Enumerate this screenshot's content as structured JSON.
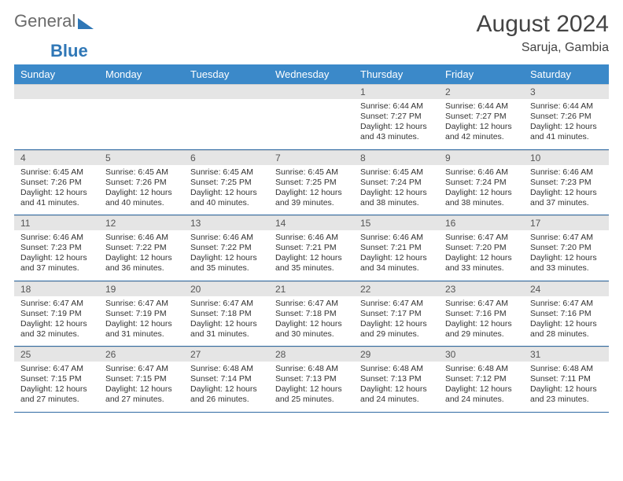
{
  "logo": {
    "text1": "General",
    "text2": "Blue"
  },
  "title": "August 2024",
  "subtitle": "Saruja, Gambia",
  "colors": {
    "header_bg": "#3b89c9",
    "header_fg": "#ffffff",
    "daynum_bg": "#e5e5e5",
    "week_border": "#2f6aa3",
    "logo_gray": "#6b6b6b",
    "logo_blue": "#2f77b6"
  },
  "weekdays": [
    "Sunday",
    "Monday",
    "Tuesday",
    "Wednesday",
    "Thursday",
    "Friday",
    "Saturday"
  ],
  "weeks": [
    {
      "nums": [
        "",
        "",
        "",
        "",
        "1",
        "2",
        "3"
      ],
      "cells": [
        null,
        null,
        null,
        null,
        {
          "sunrise": "6:44 AM",
          "sunset": "7:27 PM",
          "day": "12 hours and 43 minutes."
        },
        {
          "sunrise": "6:44 AM",
          "sunset": "7:27 PM",
          "day": "12 hours and 42 minutes."
        },
        {
          "sunrise": "6:44 AM",
          "sunset": "7:26 PM",
          "day": "12 hours and 41 minutes."
        }
      ]
    },
    {
      "nums": [
        "4",
        "5",
        "6",
        "7",
        "8",
        "9",
        "10"
      ],
      "cells": [
        {
          "sunrise": "6:45 AM",
          "sunset": "7:26 PM",
          "day": "12 hours and 41 minutes."
        },
        {
          "sunrise": "6:45 AM",
          "sunset": "7:26 PM",
          "day": "12 hours and 40 minutes."
        },
        {
          "sunrise": "6:45 AM",
          "sunset": "7:25 PM",
          "day": "12 hours and 40 minutes."
        },
        {
          "sunrise": "6:45 AM",
          "sunset": "7:25 PM",
          "day": "12 hours and 39 minutes."
        },
        {
          "sunrise": "6:45 AM",
          "sunset": "7:24 PM",
          "day": "12 hours and 38 minutes."
        },
        {
          "sunrise": "6:46 AM",
          "sunset": "7:24 PM",
          "day": "12 hours and 38 minutes."
        },
        {
          "sunrise": "6:46 AM",
          "sunset": "7:23 PM",
          "day": "12 hours and 37 minutes."
        }
      ]
    },
    {
      "nums": [
        "11",
        "12",
        "13",
        "14",
        "15",
        "16",
        "17"
      ],
      "cells": [
        {
          "sunrise": "6:46 AM",
          "sunset": "7:23 PM",
          "day": "12 hours and 37 minutes."
        },
        {
          "sunrise": "6:46 AM",
          "sunset": "7:22 PM",
          "day": "12 hours and 36 minutes."
        },
        {
          "sunrise": "6:46 AM",
          "sunset": "7:22 PM",
          "day": "12 hours and 35 minutes."
        },
        {
          "sunrise": "6:46 AM",
          "sunset": "7:21 PM",
          "day": "12 hours and 35 minutes."
        },
        {
          "sunrise": "6:46 AM",
          "sunset": "7:21 PM",
          "day": "12 hours and 34 minutes."
        },
        {
          "sunrise": "6:47 AM",
          "sunset": "7:20 PM",
          "day": "12 hours and 33 minutes."
        },
        {
          "sunrise": "6:47 AM",
          "sunset": "7:20 PM",
          "day": "12 hours and 33 minutes."
        }
      ]
    },
    {
      "nums": [
        "18",
        "19",
        "20",
        "21",
        "22",
        "23",
        "24"
      ],
      "cells": [
        {
          "sunrise": "6:47 AM",
          "sunset": "7:19 PM",
          "day": "12 hours and 32 minutes."
        },
        {
          "sunrise": "6:47 AM",
          "sunset": "7:19 PM",
          "day": "12 hours and 31 minutes."
        },
        {
          "sunrise": "6:47 AM",
          "sunset": "7:18 PM",
          "day": "12 hours and 31 minutes."
        },
        {
          "sunrise": "6:47 AM",
          "sunset": "7:18 PM",
          "day": "12 hours and 30 minutes."
        },
        {
          "sunrise": "6:47 AM",
          "sunset": "7:17 PM",
          "day": "12 hours and 29 minutes."
        },
        {
          "sunrise": "6:47 AM",
          "sunset": "7:16 PM",
          "day": "12 hours and 29 minutes."
        },
        {
          "sunrise": "6:47 AM",
          "sunset": "7:16 PM",
          "day": "12 hours and 28 minutes."
        }
      ]
    },
    {
      "nums": [
        "25",
        "26",
        "27",
        "28",
        "29",
        "30",
        "31"
      ],
      "cells": [
        {
          "sunrise": "6:47 AM",
          "sunset": "7:15 PM",
          "day": "12 hours and 27 minutes."
        },
        {
          "sunrise": "6:47 AM",
          "sunset": "7:15 PM",
          "day": "12 hours and 27 minutes."
        },
        {
          "sunrise": "6:48 AM",
          "sunset": "7:14 PM",
          "day": "12 hours and 26 minutes."
        },
        {
          "sunrise": "6:48 AM",
          "sunset": "7:13 PM",
          "day": "12 hours and 25 minutes."
        },
        {
          "sunrise": "6:48 AM",
          "sunset": "7:13 PM",
          "day": "12 hours and 24 minutes."
        },
        {
          "sunrise": "6:48 AM",
          "sunset": "7:12 PM",
          "day": "12 hours and 24 minutes."
        },
        {
          "sunrise": "6:48 AM",
          "sunset": "7:11 PM",
          "day": "12 hours and 23 minutes."
        }
      ]
    }
  ],
  "labels": {
    "sunrise": "Sunrise:",
    "sunset": "Sunset:",
    "daylight": "Daylight:"
  }
}
